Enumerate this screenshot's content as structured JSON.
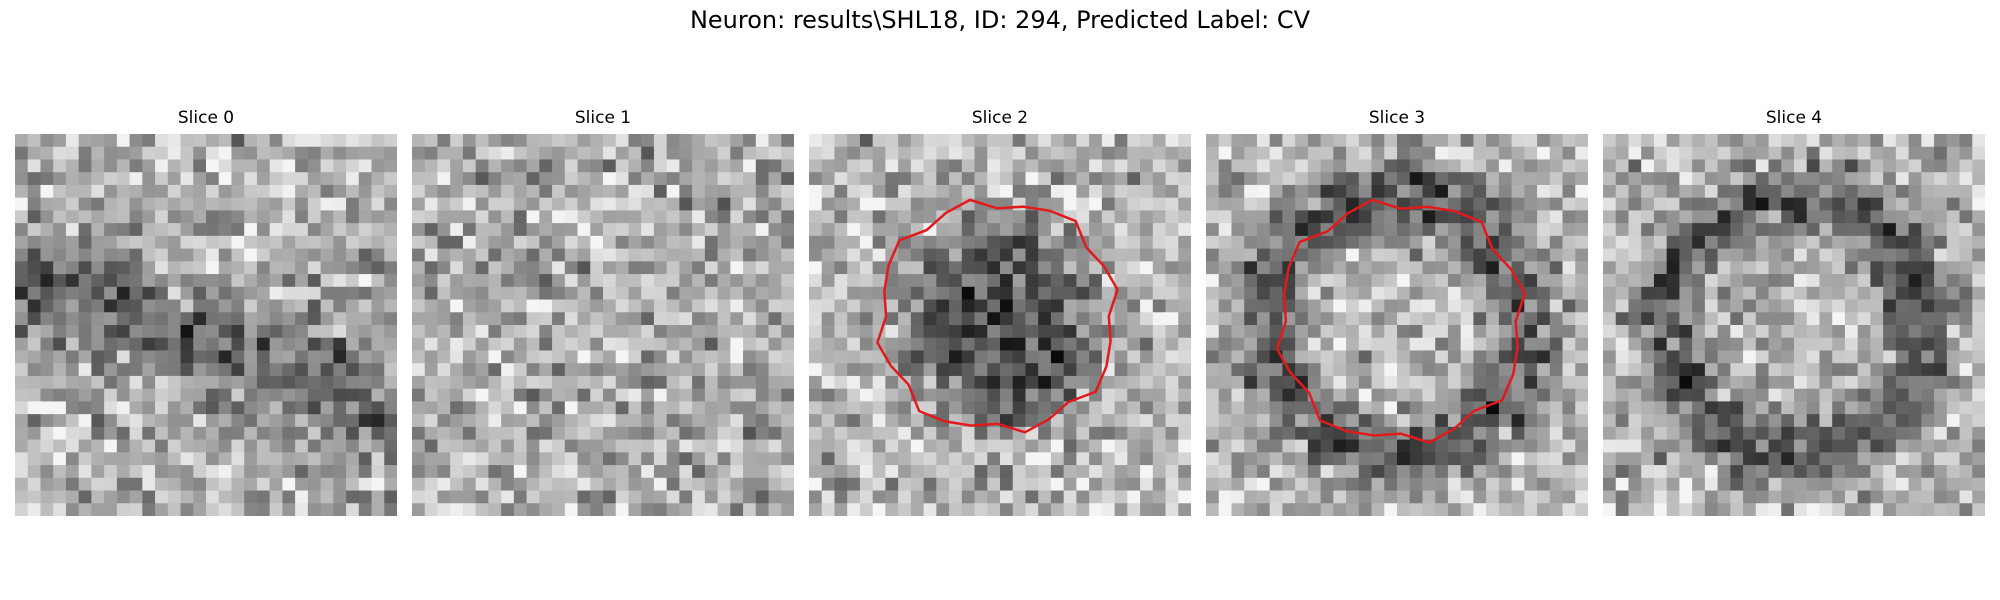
{
  "figure": {
    "title": "Neuron: results\\SHL18, ID: 294, Predicted Label: CV"
  },
  "contour_color": "#e31a1c",
  "panels": [
    {
      "label": "Slice 0",
      "has_contour": false,
      "pattern": "diagonal dark band"
    },
    {
      "label": "Slice 1",
      "has_contour": false,
      "pattern": "diffuse noise"
    },
    {
      "label": "Slice 2",
      "has_contour": true,
      "pattern": "dark disk"
    },
    {
      "label": "Slice 3",
      "has_contour": true,
      "pattern": "dark ring"
    },
    {
      "label": "Slice 4",
      "has_contour": false,
      "pattern": "dark ring"
    }
  ]
}
